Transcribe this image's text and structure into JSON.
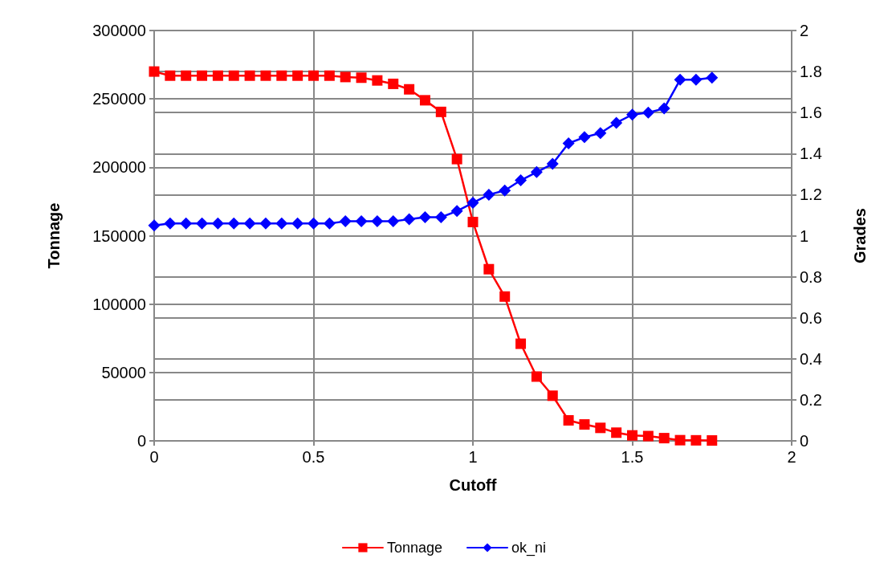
{
  "chart_data": {
    "type": "line",
    "xlabel": "Cutoff",
    "ylabel": "Tonnage",
    "y2label": "Grades",
    "x": [
      0,
      0.05,
      0.1,
      0.15,
      0.2,
      0.25,
      0.3,
      0.35,
      0.4,
      0.45,
      0.5,
      0.55,
      0.6,
      0.65,
      0.7,
      0.75,
      0.8,
      0.85,
      0.9,
      0.95,
      1,
      1.05,
      1.1,
      1.15,
      1.2,
      1.25,
      1.3,
      1.35,
      1.4,
      1.45,
      1.5,
      1.55,
      1.6,
      1.65,
      1.7,
      1.75
    ],
    "series": [
      {
        "name": "Tonnage",
        "color": "#ff0000",
        "marker": "square",
        "values": [
          270000,
          267000,
          267000,
          267000,
          267000,
          267000,
          267000,
          267000,
          267000,
          267000,
          267000,
          267000,
          266000,
          265500,
          263500,
          261000,
          257000,
          249000,
          240500,
          206000,
          160000,
          125500,
          105500,
          71000,
          47000,
          33000,
          15000,
          12000,
          9500,
          6000,
          4000,
          3500,
          2000,
          500,
          400,
          300
        ]
      },
      {
        "name": "ok_ni",
        "color": "#0000ff",
        "marker": "diamond",
        "axis": "y2",
        "values": [
          1.05,
          1.06,
          1.06,
          1.06,
          1.06,
          1.06,
          1.06,
          1.06,
          1.06,
          1.06,
          1.06,
          1.06,
          1.07,
          1.07,
          1.07,
          1.07,
          1.08,
          1.09,
          1.09,
          1.12,
          1.16,
          1.2,
          1.22,
          1.27,
          1.31,
          1.35,
          1.45,
          1.48,
          1.5,
          1.55,
          1.59,
          1.6,
          1.62,
          1.76,
          1.76,
          1.77
        ]
      }
    ],
    "xlim": [
      0,
      2
    ],
    "xticks": [
      0,
      0.5,
      1,
      1.5,
      2
    ],
    "ylim": [
      0,
      300000
    ],
    "yticks": [
      0,
      50000,
      100000,
      150000,
      200000,
      250000,
      300000
    ],
    "y2lim": [
      0,
      2
    ],
    "y2ticks": [
      0,
      0.2,
      0.4,
      0.6,
      0.8,
      1,
      1.2,
      1.4,
      1.6,
      1.8,
      2
    ],
    "grid": true,
    "legend": "bottom",
    "line_style": "solid"
  }
}
